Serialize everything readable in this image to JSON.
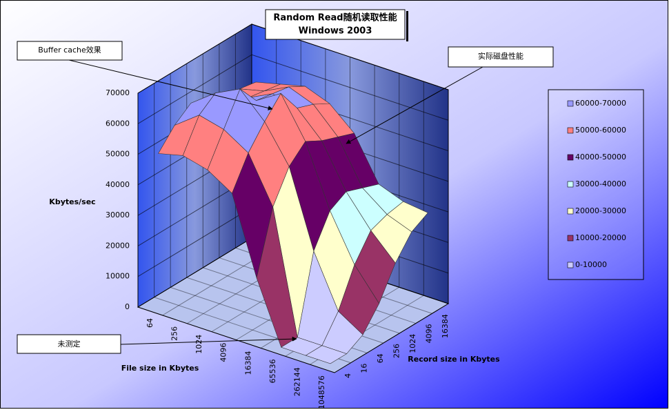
{
  "chart_data": {
    "type": "surface3d",
    "title": "Random Read随机读取性能",
    "subtitle": "Windows 2003",
    "z_label": "Kbytes/sec",
    "x_label": "File size in Kbytes",
    "y_label": "Record size in Kbytes",
    "categories": [
      64,
      256,
      1024,
      4096,
      16384,
      65536,
      262144,
      1048576
    ],
    "record_sizes": [
      4,
      16,
      64,
      256,
      1024,
      4096,
      16384
    ],
    "values": [
      [
        50000,
        56000,
        60000,
        58000,
        56000,
        55000,
        54000
      ],
      [
        52000,
        62000,
        66000,
        60000,
        58000,
        57000,
        56000
      ],
      [
        50000,
        60000,
        70000,
        63000,
        62000,
        61000,
        58000
      ],
      [
        45000,
        55000,
        62000,
        68000,
        60000,
        58000,
        55000
      ],
      [
        20000,
        40000,
        50000,
        55000,
        52000,
        50000,
        48000
      ],
      [
        0,
        0,
        25000,
        35000,
        38000,
        36000,
        34000
      ],
      [
        0,
        0,
        8000,
        20000,
        28000,
        30000,
        31000
      ],
      [
        0,
        0,
        3000,
        10000,
        20000,
        27000,
        30000
      ]
    ],
    "zlim": [
      0,
      70000
    ],
    "zticks": [
      0,
      10000,
      20000,
      30000,
      40000,
      50000,
      60000,
      70000
    ],
    "bands": [
      {
        "name": "60000-70000",
        "color": "#9999ff",
        "min": 60000,
        "max": 70000
      },
      {
        "name": "50000-60000",
        "color": "#ff8080",
        "min": 50000,
        "max": 60000
      },
      {
        "name": "40000-50000",
        "color": "#660066",
        "min": 40000,
        "max": 50000
      },
      {
        "name": "30000-40000",
        "color": "#ccffff",
        "min": 30000,
        "max": 40000
      },
      {
        "name": "20000-30000",
        "color": "#ffffcc",
        "min": 20000,
        "max": 30000
      },
      {
        "name": "10000-20000",
        "color": "#993366",
        "min": 10000,
        "max": 20000
      },
      {
        "name": "0-10000",
        "color": "#ccccff",
        "min": 0,
        "max": 10000
      }
    ],
    "annotations": [
      "Buffer cache效果",
      "实际磁盘性能",
      "未测定"
    ]
  }
}
